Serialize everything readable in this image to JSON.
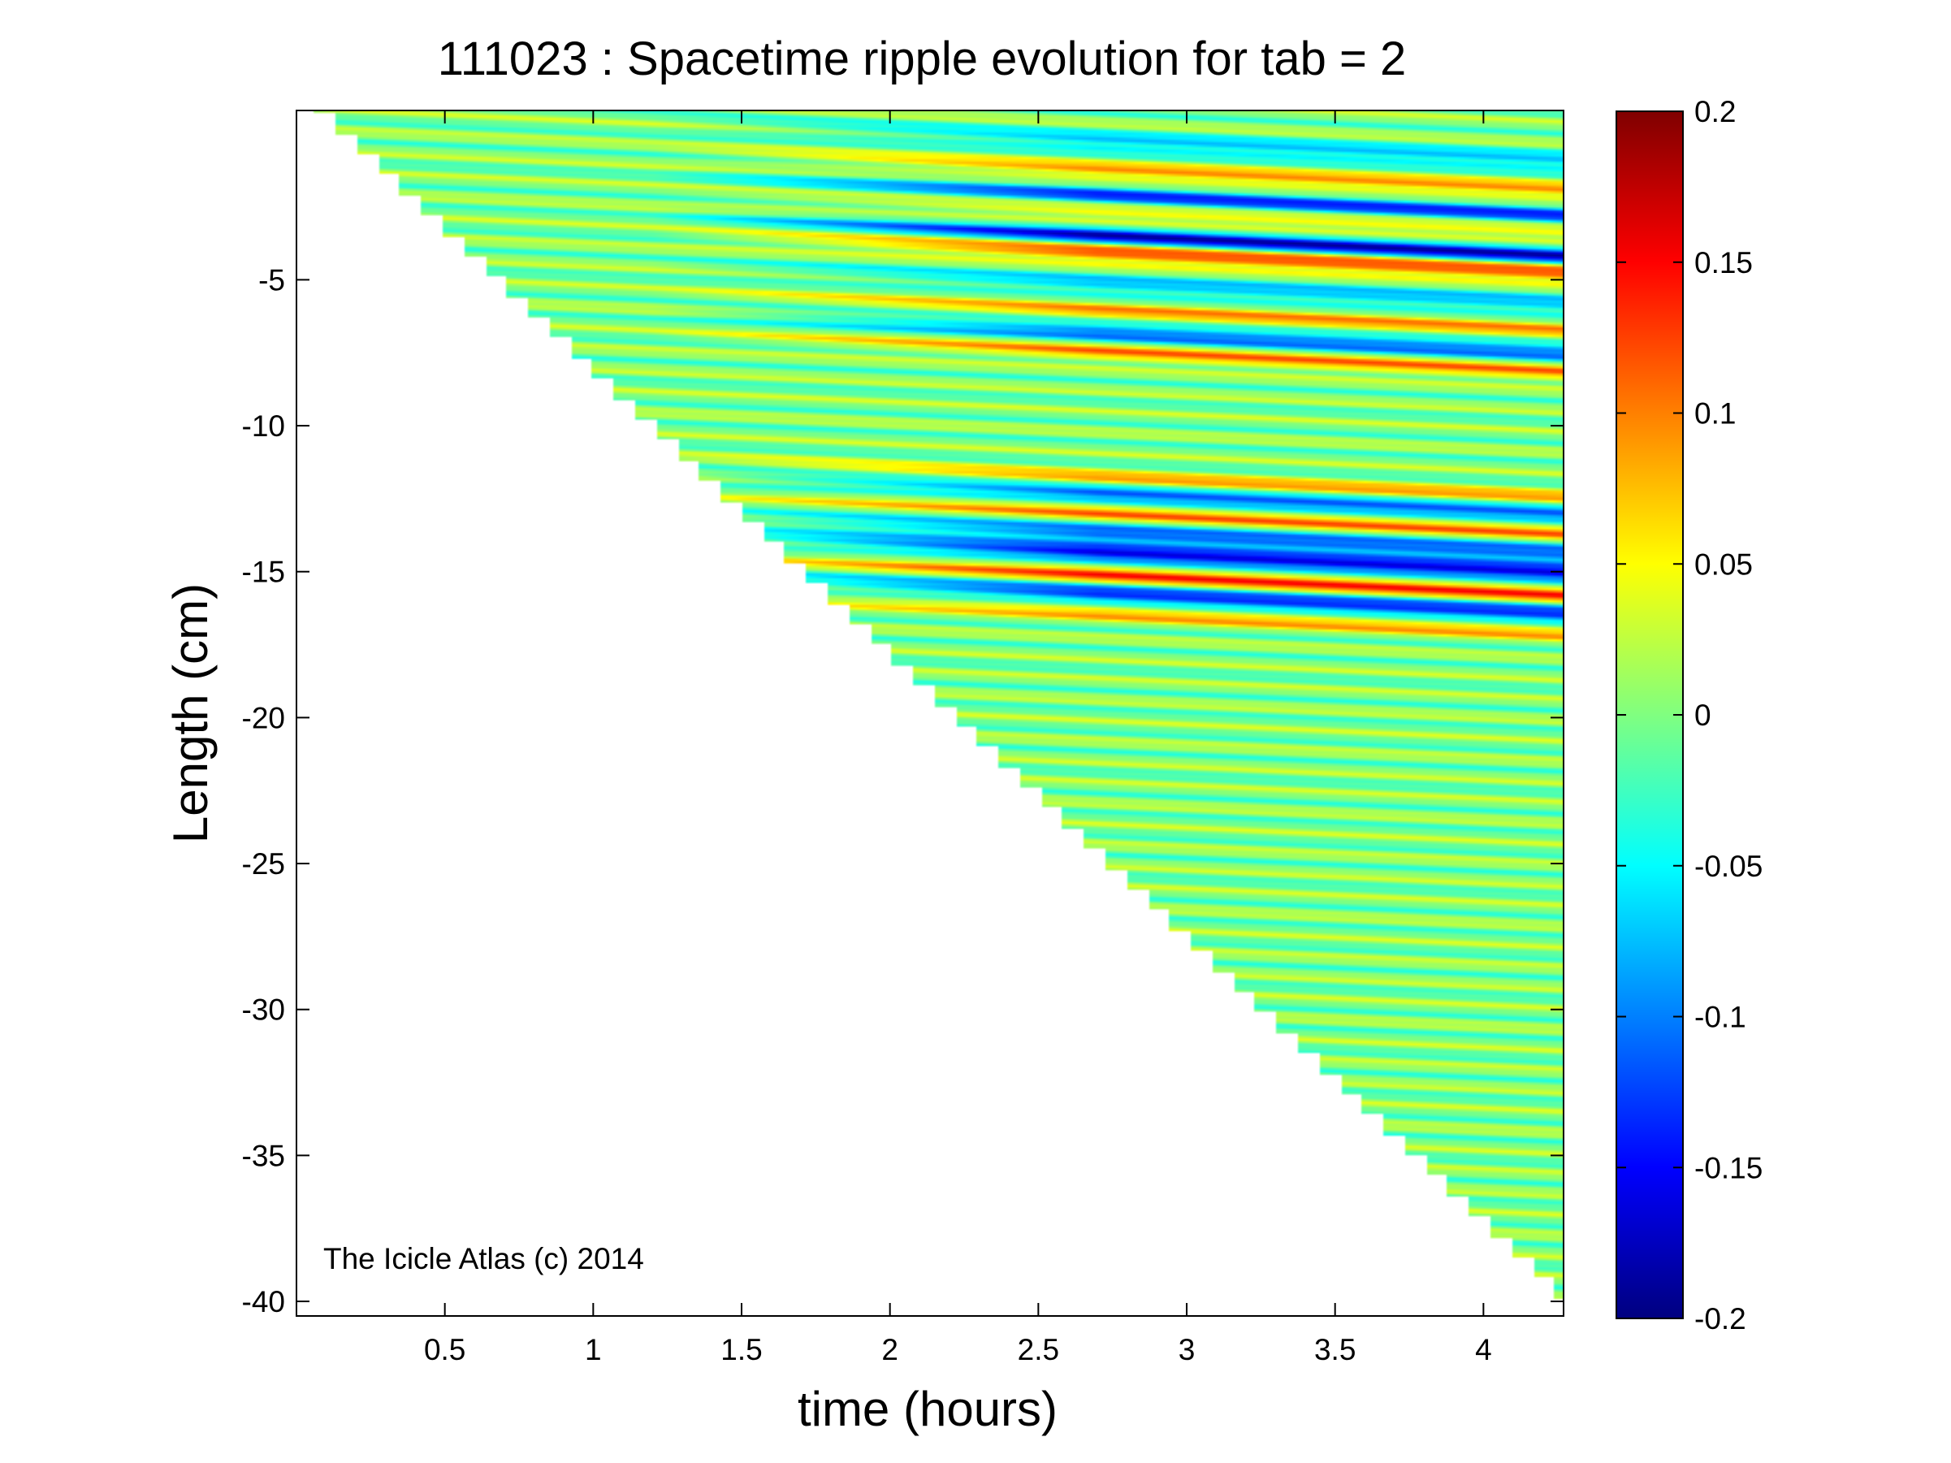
{
  "chart_data": {
    "type": "heatmap",
    "title": "111023 : Spacetime ripple evolution for tab = 2",
    "xlabel": "time (hours)",
    "ylabel": "Length (cm)",
    "xlim": [
      0.0,
      4.27
    ],
    "ylim": [
      -40.5,
      0.8
    ],
    "x_ticks": [
      0.5,
      1,
      1.5,
      2,
      2.5,
      3,
      3.5,
      4
    ],
    "x_tick_labels": [
      "0.5",
      "1",
      "1.5",
      "2",
      "2.5",
      "3",
      "3.5",
      "4"
    ],
    "y_ticks": [
      -5,
      -10,
      -15,
      -20,
      -25,
      -30,
      -35,
      -40
    ],
    "y_tick_labels": [
      "-5",
      "-10",
      "-15",
      "-20",
      "-25",
      "-30",
      "-35",
      "-40"
    ],
    "colorbar": {
      "min": -0.2,
      "max": 0.2,
      "ticks": [
        0.2,
        0.15,
        0.1,
        0.05,
        0,
        -0.05,
        -0.1,
        -0.15,
        -0.2
      ],
      "tick_labels": [
        "0.2",
        "0.15",
        "0.1",
        "0.05",
        "0",
        "-0.05",
        "-0.1",
        "-0.15",
        "-0.2"
      ],
      "colormap": "jet"
    },
    "icicle_tip_boundary": {
      "x": [
        0.05,
        4.25
      ],
      "y": [
        0.8,
        -40.0
      ]
    },
    "ripple_bands": [
      {
        "y": -0.5,
        "amplitude": -0.08
      },
      {
        "y": -1.5,
        "amplitude": 0.09
      },
      {
        "y": -2.3,
        "amplitude": -0.12
      },
      {
        "y": -3.0,
        "amplitude": 0.06
      },
      {
        "y": -3.7,
        "amplitude": -0.16
      },
      {
        "y": -4.3,
        "amplitude": 0.13
      },
      {
        "y": -5.4,
        "amplitude": -0.08
      },
      {
        "y": -6.3,
        "amplitude": 0.08
      },
      {
        "y": -7.0,
        "amplitude": -0.12
      },
      {
        "y": -7.7,
        "amplitude": 0.09
      },
      {
        "y": -12.1,
        "amplitude": 0.1
      },
      {
        "y": -12.5,
        "amplitude": -0.15
      },
      {
        "y": -13.2,
        "amplitude": 0.09
      },
      {
        "y": -13.9,
        "amplitude": -0.13
      },
      {
        "y": -14.6,
        "amplitude": -0.17
      },
      {
        "y": -15.3,
        "amplitude": 0.12
      },
      {
        "y": -16.0,
        "amplitude": -0.15
      },
      {
        "y": -16.6,
        "amplitude": 0.08
      }
    ]
  },
  "watermark": "The Icicle Atlas (c) 2014"
}
